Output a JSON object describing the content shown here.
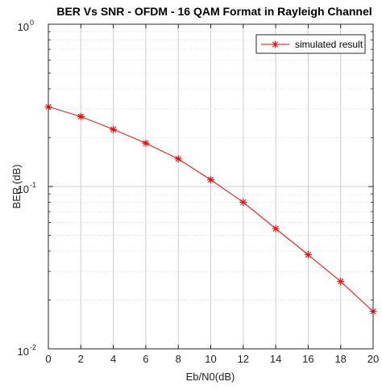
{
  "chart_data": {
    "type": "line",
    "title": "BER Vs SNR - OFDM - 16 QAM Format in  Rayleigh Channel",
    "xlabel": "Eb/N0(dB)",
    "ylabel": "BER (dB)",
    "xlim": [
      0,
      20
    ],
    "ylim": [
      0.01,
      1
    ],
    "yscale": "log",
    "grid": true,
    "legend_position": "top-right",
    "x_ticks": [
      "0",
      "2",
      "4",
      "6",
      "8",
      "10",
      "12",
      "14",
      "16",
      "18",
      "20"
    ],
    "y_ticks": [
      {
        "base": "10",
        "exp": "-2"
      },
      {
        "base": "10",
        "exp": "-1"
      },
      {
        "base": "10",
        "exp": "0"
      }
    ],
    "series": [
      {
        "name": "simulated result",
        "color": "#ff0000",
        "marker": "asterisk",
        "x": [
          0,
          2,
          4,
          6,
          8,
          10,
          12,
          14,
          16,
          18,
          20
        ],
        "y": [
          0.31,
          0.27,
          0.225,
          0.185,
          0.148,
          0.11,
          0.08,
          0.055,
          0.038,
          0.026,
          0.017
        ]
      }
    ]
  }
}
